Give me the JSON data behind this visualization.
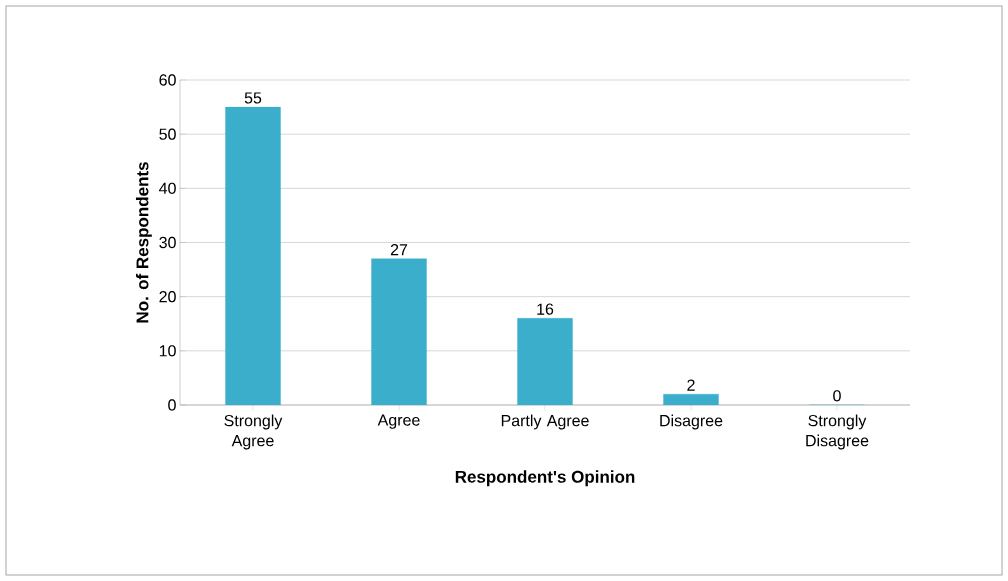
{
  "chart_data": {
    "type": "bar",
    "xlabel": "Respondent's Opinion",
    "ylabel": "No. of Respondents",
    "categories": [
      "Strongly Agree",
      "Agree",
      "Partly Agree",
      "Disagree",
      "Strongly Disagree"
    ],
    "values": [
      55,
      27,
      16,
      2,
      0
    ],
    "color": "#3aaecb",
    "ylim": [
      0,
      60
    ],
    "yticks": [
      0,
      10,
      20,
      30,
      40,
      50,
      60
    ],
    "grid": "y",
    "data_labels": true
  }
}
